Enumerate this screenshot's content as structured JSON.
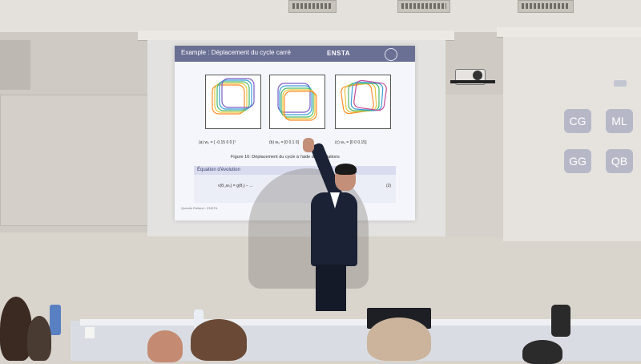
{
  "slide": {
    "title": "Example : Déplacement du cycle carré",
    "logo": "ENSTA",
    "captions": [
      "(a) w₀ = [ -0.15  0  0 ]ᵀ",
      "(b) w₀ = [0  0.1  0]",
      "(c) w₀ = [0  0  0.15]"
    ],
    "figure_caption": "Figure 16: Déplacement du cycle à l'aide des déviations",
    "equation_title": "Équation d'évolution",
    "equation_text": "v(θ₁,w₀) = g(θ₁) − ...",
    "equation_number": "(2)",
    "footer": "Quentin Rolland - ENSTA"
  },
  "participants": [
    "CG",
    "ML",
    "GG",
    "QB"
  ]
}
